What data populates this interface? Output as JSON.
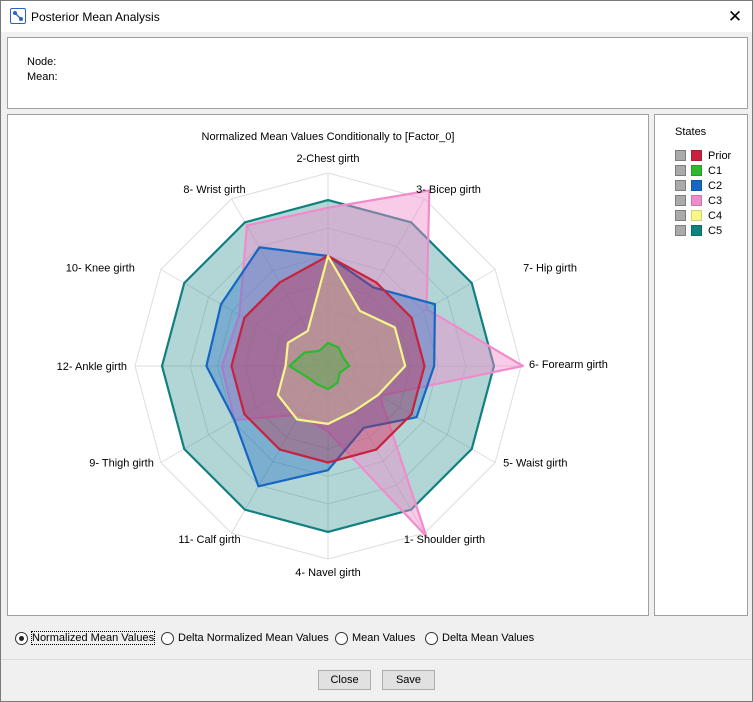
{
  "window": {
    "title": "Posterior Mean Analysis",
    "close_glyph": "✕"
  },
  "info": {
    "node_label": "Node:",
    "mean_label": "Mean:"
  },
  "legend": {
    "title": "States",
    "items": [
      {
        "label": "Prior",
        "color": "#c8213e"
      },
      {
        "label": "C1",
        "color": "#2eb82e"
      },
      {
        "label": "C2",
        "color": "#1666c4"
      },
      {
        "label": "C3",
        "color": "#f08ccc"
      },
      {
        "label": "C4",
        "color": "#f6f68a"
      },
      {
        "label": "C5",
        "color": "#118080"
      }
    ]
  },
  "chart_data": {
    "type": "radar",
    "title": "Normalized Mean Values Conditionally to [Factor_0]",
    "axes": [
      "2-Chest girth",
      "3- Bicep girth",
      "7- Hip girth",
      "6- Forearm girth",
      "5- Waist girth",
      "1- Shoulder girth",
      "4- Navel girth",
      "11- Calf girth",
      "9- Thigh girth",
      "12- Ankle girth",
      "10- Knee girth",
      "8- Wrist girth"
    ],
    "grid_rings": 7,
    "series": [
      {
        "name": "Prior",
        "color": "#c8213e",
        "values": [
          0.57,
          0.5,
          0.5,
          0.5,
          0.5,
          0.5,
          0.5,
          0.5,
          0.5,
          0.5,
          0.5,
          0.5
        ]
      },
      {
        "name": "C1",
        "color": "#2eb82e",
        "values": [
          0.12,
          0.11,
          0.09,
          0.11,
          0.07,
          0.1,
          0.12,
          0.11,
          0.12,
          0.2,
          0.14,
          0.09
        ]
      },
      {
        "name": "C2",
        "color": "#1666c4",
        "values": [
          0.57,
          0.47,
          0.64,
          0.55,
          0.53,
          0.37,
          0.54,
          0.72,
          0.56,
          0.63,
          0.64,
          0.71
        ]
      },
      {
        "name": "C3",
        "color": "#f08ccc",
        "values": [
          0.82,
          1.05,
          0.59,
          1.01,
          0.31,
          1.02,
          0.34,
          0.29,
          0.56,
          0.55,
          0.53,
          0.84
        ]
      },
      {
        "name": "C4",
        "color": "#f6f68a",
        "values": [
          0.57,
          0.33,
          0.4,
          0.4,
          0.3,
          0.27,
          0.3,
          0.32,
          0.3,
          0.22,
          0.24,
          0.21
        ]
      },
      {
        "name": "C5",
        "color": "#118080",
        "values": [
          0.86,
          0.86,
          0.86,
          0.86,
          0.86,
          0.86,
          0.86,
          0.86,
          0.86,
          0.86,
          0.86,
          0.86
        ]
      }
    ]
  },
  "radios": [
    {
      "label": "Normalized Mean Values",
      "selected": true
    },
    {
      "label": "Delta Normalized Mean Values",
      "selected": false
    },
    {
      "label": "Mean Values",
      "selected": false
    },
    {
      "label": "Delta Mean Values",
      "selected": false
    }
  ],
  "buttons": {
    "close": "Close",
    "save": "Save"
  }
}
